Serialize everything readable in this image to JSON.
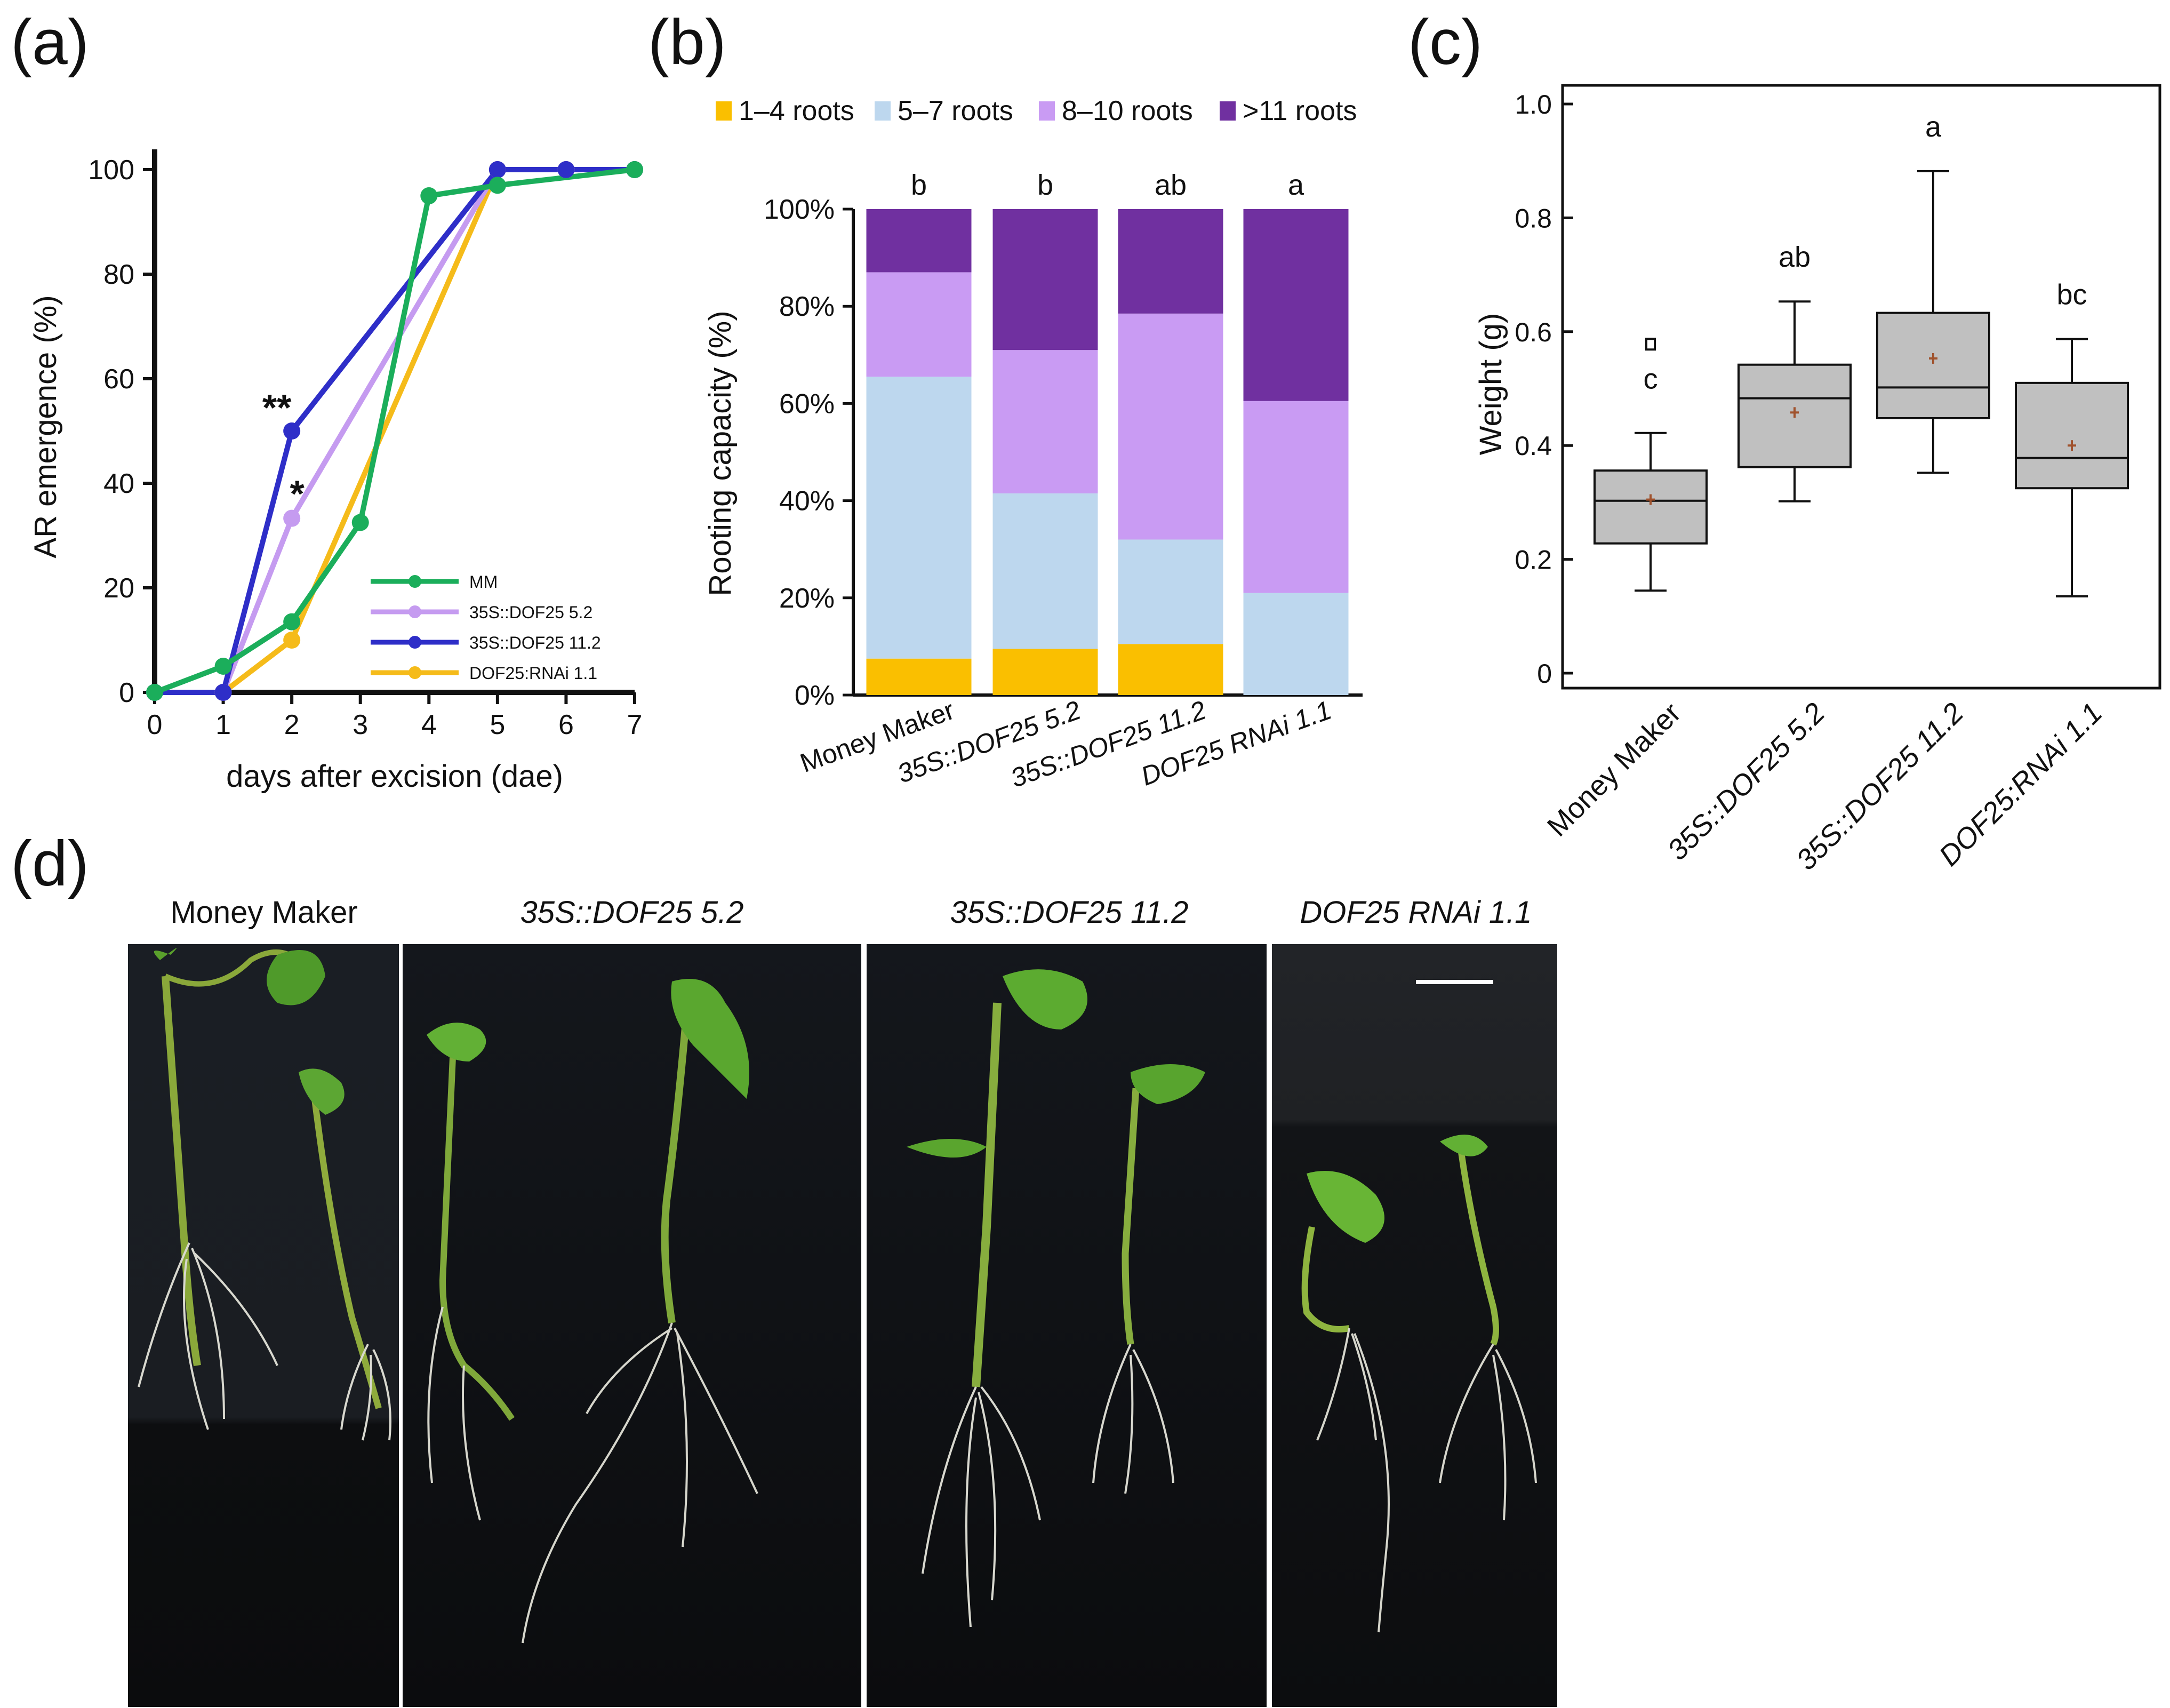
{
  "panel_labels": {
    "a": "(a)",
    "b": "(b)",
    "c": "(c)",
    "d": "(d)"
  },
  "chart_data": [
    {
      "panel": "(a)",
      "type": "line",
      "xlabel": "days after excision (dae)",
      "ylabel": "AR emergence (%)",
      "xlim": [
        0,
        7
      ],
      "ylim": [
        0,
        100
      ],
      "xticks": [
        "0",
        "1",
        "2",
        "3",
        "4",
        "5",
        "6",
        "7"
      ],
      "yticks": [
        "0",
        "20",
        "40",
        "60",
        "80",
        "100"
      ],
      "legend_position": "bottom-right",
      "series": [
        {
          "name": "MM",
          "color": "#1BAE5B",
          "x": [
            0,
            1,
            2,
            3,
            4,
            5,
            7
          ],
          "values": [
            0,
            5,
            13.5,
            32.5,
            95,
            97,
            100
          ]
        },
        {
          "name": "35S::DOF25 5.2",
          "color": "#C59BF0",
          "x": [
            0,
            1,
            2,
            5,
            6,
            7
          ],
          "values": [
            0,
            0,
            33.3,
            100,
            100,
            100
          ]
        },
        {
          "name": "35S::DOF25 11.2",
          "color": "#2E2EC8",
          "x": [
            0,
            1,
            2,
            5,
            6,
            7
          ],
          "values": [
            0,
            0,
            50,
            100,
            100,
            100
          ]
        },
        {
          "name": "DOF25:RNAi 1.1",
          "color": "#F5BB1A",
          "x": [
            0,
            1,
            2,
            5,
            6,
            7
          ],
          "values": [
            0,
            0,
            10,
            100,
            100,
            100
          ]
        }
      ],
      "annotations": [
        {
          "text": "**",
          "x": 2,
          "y": 50
        },
        {
          "text": "*",
          "x": 2,
          "y": 33.3
        }
      ]
    },
    {
      "panel": "(b)",
      "type": "bar",
      "stacked": true,
      "ylabel": "Rooting capacity (%)",
      "ylim": [
        0,
        100
      ],
      "yticks": [
        "0%",
        "20%",
        "40%",
        "60%",
        "80%",
        "100%"
      ],
      "categories": [
        "Money Maker",
        "35S::DOF25 5.2",
        "35S::DOF25 11.2",
        "DOF25 RNAi 1.1"
      ],
      "letters": [
        "b",
        "b",
        "ab",
        "a"
      ],
      "legend_position": "top",
      "series": [
        {
          "name": "1–4 roots",
          "color": "#FABF00",
          "values": [
            7.5,
            9.5,
            10.5,
            0
          ]
        },
        {
          "name": "5–7 roots",
          "color": "#BDD7EE",
          "values": [
            58,
            32,
            21.5,
            21
          ]
        },
        {
          "name": "8–10 roots",
          "color": "#C99BF3",
          "values": [
            21.5,
            29.5,
            46.5,
            39.5
          ]
        },
        {
          "name": ">11 roots",
          "color": "#7030A0",
          "values": [
            13,
            29,
            21.5,
            39.5
          ]
        }
      ]
    },
    {
      "panel": "(c)",
      "type": "box",
      "ylabel": "Weight (g)",
      "ylim": [
        0,
        1.0
      ],
      "yticks": [
        "0",
        "0.2",
        "0.4",
        "0.6",
        "0.8",
        "1.0"
      ],
      "categories": [
        "Money Maker",
        "35S::DOF25 5.2",
        "35S::DOF25 11.2",
        "DOF25:RNAi 1.1"
      ],
      "letters": [
        "c",
        "ab",
        "a",
        "bc"
      ],
      "boxes": [
        {
          "min": 0.145,
          "q1": 0.228,
          "median": 0.303,
          "q3": 0.356,
          "max": 0.422,
          "mean": 0.305,
          "outliers": [
            0.578
          ]
        },
        {
          "min": 0.302,
          "q1": 0.362,
          "median": 0.483,
          "q3": 0.542,
          "max": 0.653,
          "mean": 0.458,
          "outliers": []
        },
        {
          "min": 0.352,
          "q1": 0.448,
          "median": 0.502,
          "q3": 0.633,
          "max": 0.882,
          "mean": 0.553,
          "outliers": []
        },
        {
          "min": 0.135,
          "q1": 0.325,
          "median": 0.378,
          "q3": 0.51,
          "max": 0.587,
          "mean": 0.4,
          "outliers": []
        }
      ],
      "box_color": "#C0C0C0",
      "mean_color": "#A0522D"
    }
  ],
  "photo_panel": {
    "titles": [
      "Money Maker",
      "35S::DOF25 5.2",
      "35S::DOF25 11.2",
      "DOF25 RNAi 1.1"
    ]
  }
}
